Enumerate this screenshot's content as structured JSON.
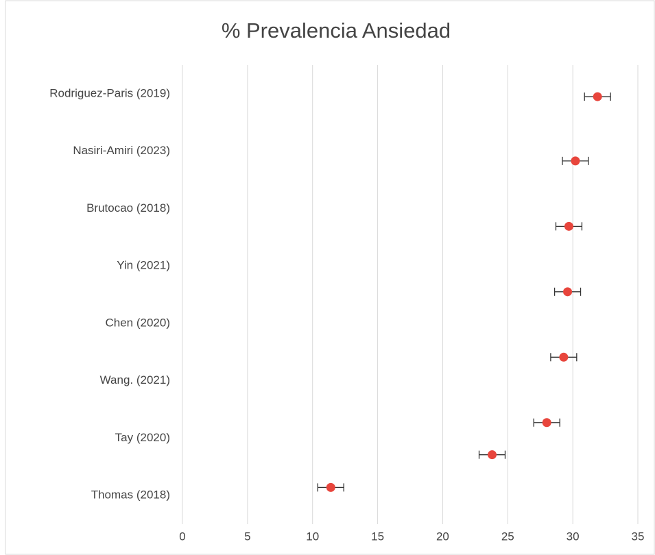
{
  "chart_data": {
    "type": "scatter",
    "title": "% Prevalencia Ansiedad",
    "series": [
      {
        "color": "#e8453c",
        "x": [
          31.9,
          30.2,
          29.7,
          29.6,
          29.3,
          28.0,
          23.8,
          11.4
        ],
        "y": [
          7.45,
          6.33,
          5.19,
          4.05,
          2.91,
          1.77,
          1.21,
          0.64
        ],
        "x_error": [
          1,
          1,
          1,
          1,
          1,
          1,
          1,
          1
        ]
      }
    ],
    "xlim": [
      0,
      35
    ],
    "xticks": [
      0,
      5,
      10,
      15,
      20,
      25,
      30,
      35
    ],
    "ylim": [
      0,
      8
    ],
    "yticks": [
      {
        "value": 7.5,
        "label": "Rodriguez-Paris (2019)"
      },
      {
        "value": 6.5,
        "label": "Nasiri-Amiri (2023)"
      },
      {
        "value": 5.5,
        "label": "Brutocao  (2018)"
      },
      {
        "value": 4.5,
        "label": "Yin (2021)"
      },
      {
        "value": 3.5,
        "label": "Chen  (2020)"
      },
      {
        "value": 2.5,
        "label": "Wang. (2021)"
      },
      {
        "value": 1.5,
        "label": "Tay (2020)"
      },
      {
        "value": 0.5,
        "label": "Thomas (2018)"
      }
    ],
    "grid": true
  }
}
